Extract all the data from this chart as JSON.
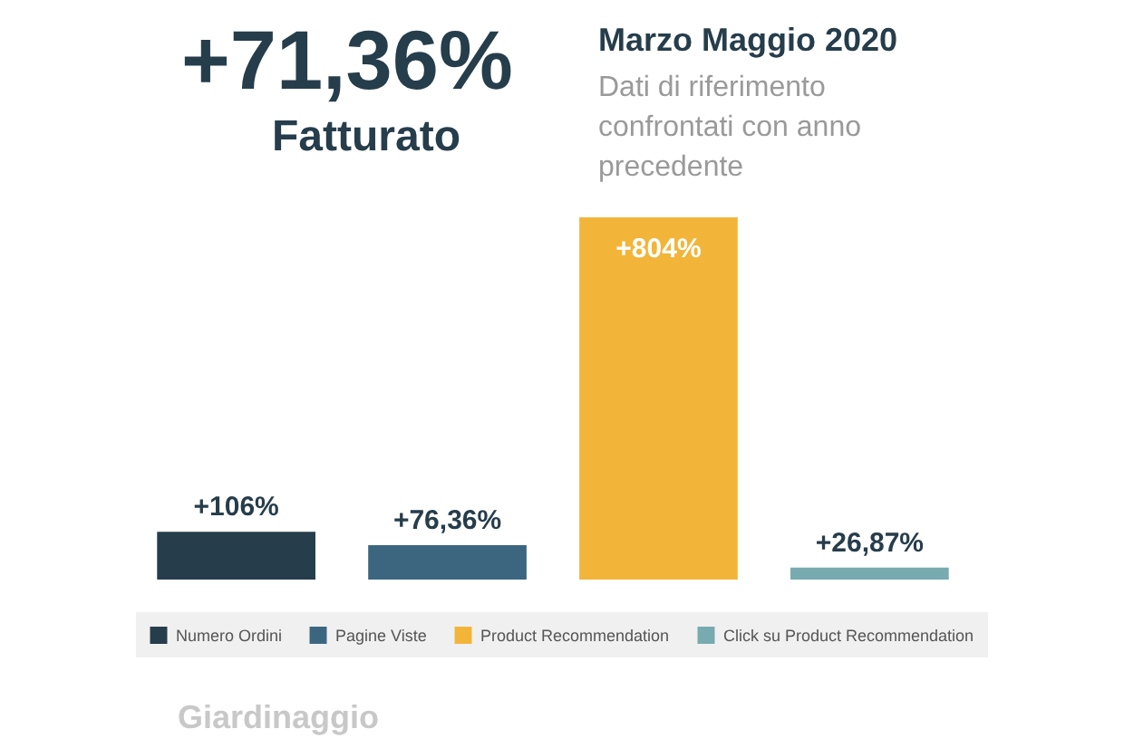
{
  "chart_data": {
    "type": "bar",
    "title": "Marzo Maggio 2020",
    "subtitle": "Dati di riferimento confrontati con anno precedente",
    "annotations": [
      "+71,36%",
      "Fatturato",
      "Giardinaggio"
    ],
    "categories": [
      null,
      null,
      null,
      null
    ],
    "series": [
      {
        "name": "Numero Ordini",
        "color": "#263d4b",
        "values": [
          106,
          null,
          null,
          null
        ],
        "value_labels": [
          "+106%",
          null,
          null,
          null
        ]
      },
      {
        "name": "Pagine Viste",
        "color": "#3c6680",
        "values": [
          null,
          76.36,
          null,
          null
        ],
        "value_labels": [
          null,
          "+76,36%",
          null,
          null
        ]
      },
      {
        "name": "Product Recommendation",
        "color": "#f2b53a",
        "values": [
          null,
          null,
          804,
          null
        ],
        "value_labels": [
          null,
          null,
          "+804%",
          null
        ]
      },
      {
        "name": "Click su Product Recommendation",
        "color": "#77abb0",
        "values": [
          null,
          null,
          null,
          26.87
        ],
        "value_labels": [
          null,
          null,
          null,
          "+26,87%"
        ]
      }
    ],
    "stacked": true,
    "legend": "bottom",
    "grid": false
  }
}
